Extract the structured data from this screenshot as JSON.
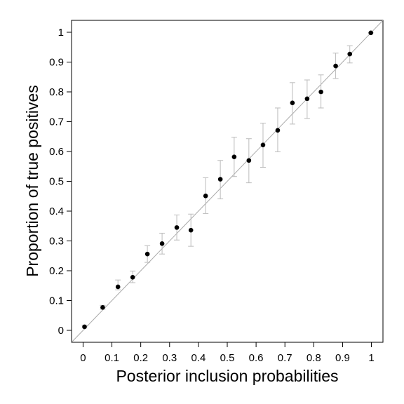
{
  "chart_data": {
    "type": "scatter",
    "x_label": "Posterior inclusion probabilities",
    "y_label": "Proportion of true positives",
    "xlim": [
      -0.04,
      1.04
    ],
    "ylim": [
      -0.04,
      1.04
    ],
    "xticks": [
      0,
      0.1,
      0.2,
      0.3,
      0.4,
      0.5,
      0.6,
      0.7,
      0.8,
      0.9,
      1
    ],
    "yticks": [
      0,
      0.1,
      0.2,
      0.3,
      0.4,
      0.5,
      0.6,
      0.7,
      0.8,
      0.9,
      1
    ],
    "series": [
      {
        "color": "#000000",
        "error_color": "#bbbbbb",
        "x": [
          0.005,
          0.068,
          0.121,
          0.172,
          0.223,
          0.274,
          0.325,
          0.374,
          0.425,
          0.476,
          0.524,
          0.575,
          0.624,
          0.675,
          0.726,
          0.777,
          0.825,
          0.876,
          0.925,
          0.998
        ],
        "values": [
          0.012,
          0.077,
          0.146,
          0.178,
          0.256,
          0.291,
          0.345,
          0.336,
          0.451,
          0.507,
          0.582,
          0.57,
          0.622,
          0.671,
          0.763,
          0.777,
          0.8,
          0.887,
          0.927,
          0.998
        ],
        "lower": [
          0.008,
          0.071,
          0.136,
          0.16,
          0.228,
          0.256,
          0.303,
          0.282,
          0.392,
          0.441,
          0.516,
          0.495,
          0.547,
          0.599,
          0.692,
          0.711,
          0.746,
          0.845,
          0.897,
          0.998
        ],
        "upper": [
          0.017,
          0.084,
          0.169,
          0.199,
          0.284,
          0.326,
          0.387,
          0.39,
          0.512,
          0.57,
          0.648,
          0.643,
          0.695,
          0.746,
          0.831,
          0.84,
          0.857,
          0.93,
          0.955,
          0.998
        ]
      }
    ]
  }
}
